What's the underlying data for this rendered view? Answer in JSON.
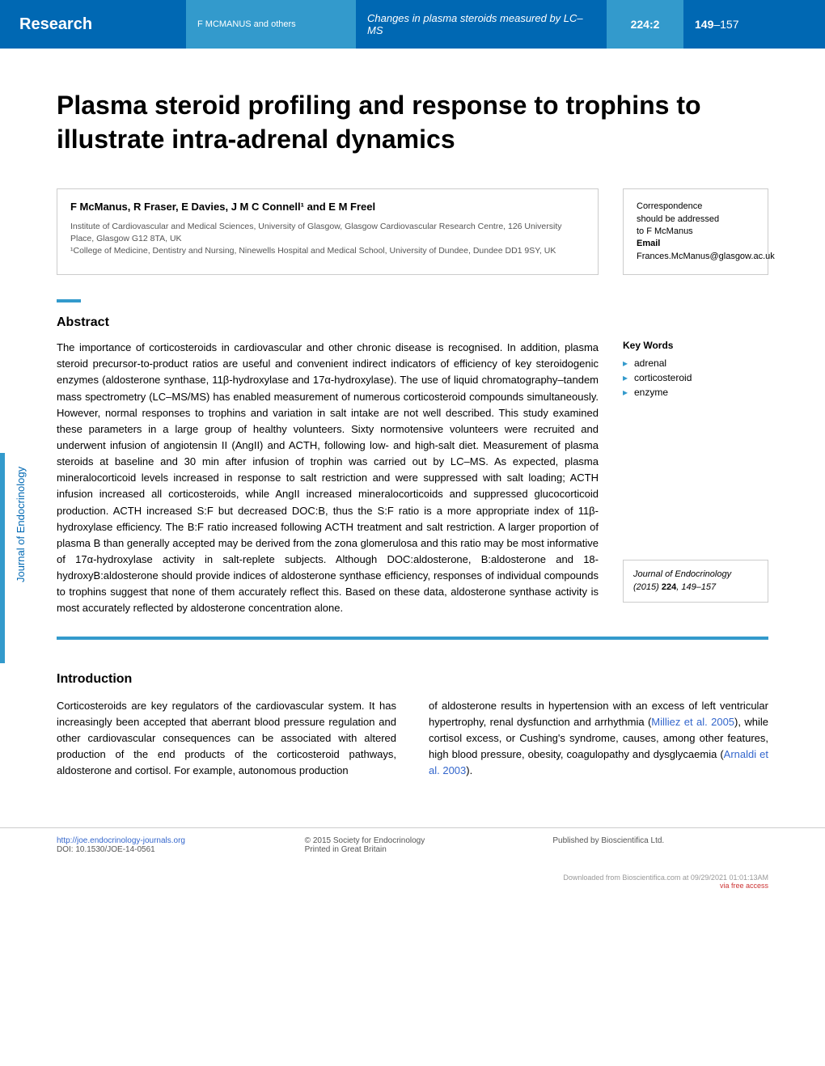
{
  "header": {
    "research_label": "Research",
    "authors_short": "F MCMANUS and others",
    "running_title": "Changes in plasma steroids measured by LC–MS",
    "volume": "224:2",
    "page_start": "149",
    "page_range_suffix": "–157"
  },
  "title": "Plasma steroid profiling and response to trophins to illustrate intra-adrenal dynamics",
  "authors": {
    "names": "F McManus, R Fraser, E Davies, J M C Connell¹ and E M Freel",
    "affiliation1": "Institute of Cardiovascular and Medical Sciences, University of Glasgow, Glasgow Cardiovascular Research Centre, 126 University Place, Glasgow G12 8TA, UK",
    "affiliation2": "¹College of Medicine, Dentistry and Nursing, Ninewells Hospital and Medical School, University of Dundee, Dundee DD1 9SY, UK"
  },
  "correspondence": {
    "line1": "Correspondence",
    "line2": "should be addressed",
    "line3": "to F McManus",
    "email_label": "Email",
    "email": "Frances.McManus@glasgow.ac.uk"
  },
  "abstract": {
    "heading": "Abstract",
    "text": "The importance of corticosteroids in cardiovascular and other chronic disease is recognised. In addition, plasma steroid precursor-to-product ratios are useful and convenient indirect indicators of efficiency of key steroidogenic enzymes (aldosterone synthase, 11β-hydroxylase and 17α-hydroxylase). The use of liquid chromatography–tandem mass spectrometry (LC–MS/MS) has enabled measurement of numerous corticosteroid compounds simultaneously. However, normal responses to trophins and variation in salt intake are not well described. This study examined these parameters in a large group of healthy volunteers. Sixty normotensive volunteers were recruited and underwent infusion of angiotensin II (AngII) and ACTH, following low- and high-salt diet. Measurement of plasma steroids at baseline and 30 min after infusion of trophin was carried out by LC–MS. As expected, plasma mineralocorticoid levels increased in response to salt restriction and were suppressed with salt loading; ACTH infusion increased all corticosteroids, while AngII increased mineralocorticoids and suppressed glucocorticoid production. ACTH increased S:F but decreased DOC:B, thus the S:F ratio is a more appropriate index of 11β-hydroxylase efficiency. The B:F ratio increased following ACTH treatment and salt restriction. A larger proportion of plasma B than generally accepted may be derived from the zona glomerulosa and this ratio may be most informative of 17α-hydroxylase activity in salt-replete subjects. Although DOC:aldosterone, B:aldosterone and 18-hydroxyB:aldosterone should provide indices of aldosterone synthase efficiency, responses of individual compounds to trophins suggest that none of them accurately reflect this. Based on these data, aldosterone synthase activity is most accurately reflected by aldosterone concentration alone."
  },
  "keywords": {
    "heading": "Key Words",
    "items": [
      "adrenal",
      "corticosteroid",
      "enzyme"
    ]
  },
  "citation": {
    "journal": "Journal of Endocrinology",
    "year_vol": "(2015) ",
    "volume": "224",
    "pages": ", 149–157"
  },
  "sidebar": {
    "label": "Journal of Endocrinology"
  },
  "introduction": {
    "heading": "Introduction",
    "col1": "Corticosteroids are key regulators of the cardiovascular system. It has increasingly been accepted that aberrant blood pressure regulation and other cardiovascular consequences can be associated with altered production of the end products of the corticosteroid pathways, aldosterone and cortisol. For example, autonomous production",
    "col2_pre": "of aldosterone results in hypertension with an excess of left ventricular hypertrophy, renal dysfunction and arrhythmia (",
    "col2_ref1": "Milliez et al. 2005",
    "col2_mid": "), while cortisol excess, or Cushing's syndrome, causes, among other features, high blood pressure, obesity, coagulopathy and dysglycaemia (",
    "col2_ref2": "Arnaldi et al. 2003",
    "col2_post": ")."
  },
  "footer": {
    "url": "http://joe.endocrinology-journals.org",
    "doi": "DOI: 10.1530/JOE-14-0561",
    "copyright": "© 2015 Society for Endocrinology",
    "printed": "Printed in Great Britain",
    "published": "Published by Bioscientifica Ltd."
  },
  "download": {
    "text": "Downloaded from Bioscientifica.com at 09/29/2021 01:01:13AM",
    "free": "via free access"
  },
  "colors": {
    "primary_blue": "#0068b3",
    "light_blue": "#339acc",
    "link_blue": "#3366cc",
    "text_gray": "#555555",
    "border_gray": "#cccccc"
  }
}
